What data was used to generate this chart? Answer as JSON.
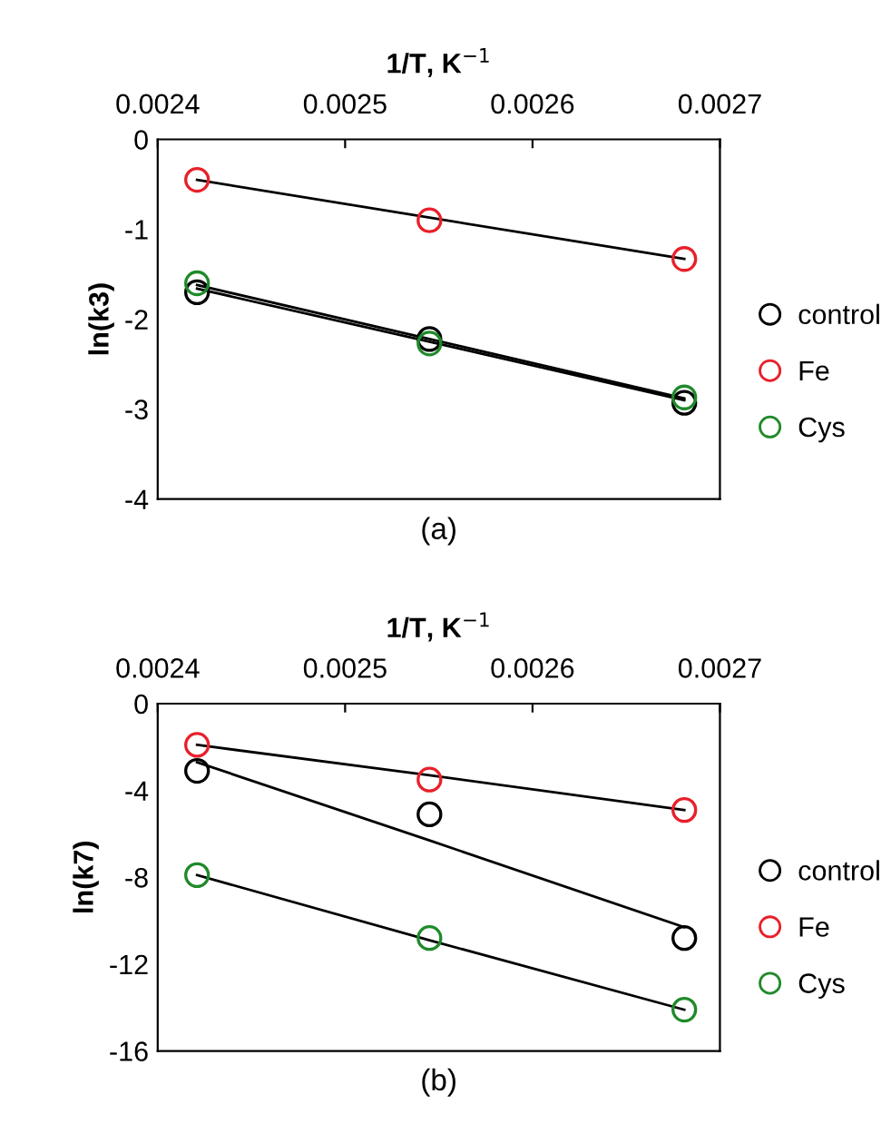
{
  "chart_data": [
    {
      "type": "scatter",
      "xlabel": "1/T, K$^{−1}$",
      "ylabel": "ln(k3)",
      "annotations": [
        "(a)"
      ],
      "legend": "right",
      "grid": false,
      "x": [
        0.002421,
        0.002545,
        0.002681
      ],
      "xlim": [
        0.0024,
        0.0027
      ],
      "xticks": [
        0.0024,
        0.0025,
        0.0026,
        0.0027
      ],
      "ylim": [
        -4,
        0
      ],
      "yticks": [
        -4,
        -3,
        -2,
        -1,
        0
      ],
      "series": [
        {
          "name": "control",
          "color": "#000000",
          "marker": "circle",
          "values": [
            -1.7,
            -2.22,
            -2.93
          ]
        },
        {
          "name": "Fe",
          "color": "#e8202a",
          "marker": "circle",
          "values": [
            -0.45,
            -0.9,
            -1.33
          ]
        },
        {
          "name": "Cys",
          "color": "#1f8a2a",
          "marker": "circle",
          "values": [
            -1.6,
            -2.27,
            -2.87
          ]
        },
        {
          "type": "line",
          "color": "#000000",
          "marker": "none",
          "values": [
            -1.66,
            -2.25,
            -2.9
          ]
        },
        {
          "type": "line",
          "color": "#000000",
          "marker": "none",
          "values": [
            -0.45,
            -0.87,
            -1.33
          ]
        },
        {
          "type": "line",
          "color": "#000000",
          "marker": "none",
          "values": [
            -1.62,
            -2.22,
            -2.88
          ]
        }
      ]
    },
    {
      "type": "scatter",
      "xlabel": "1/T, K$^{−1}$",
      "ylabel": "ln(k7)",
      "annotations": [
        "(b)"
      ],
      "legend": "right",
      "grid": false,
      "x": [
        0.002421,
        0.002545,
        0.002681
      ],
      "xlim": [
        0.0024,
        0.0027
      ],
      "xticks": [
        0.0024,
        0.0025,
        0.0026,
        0.0027
      ],
      "ylim": [
        -16,
        0
      ],
      "yticks": [
        -16,
        -12,
        -8,
        -4,
        0
      ],
      "series": [
        {
          "name": "control",
          "color": "#000000",
          "marker": "circle",
          "values": [
            -3.1,
            -5.1,
            -10.8
          ]
        },
        {
          "name": "Fe",
          "color": "#e8202a",
          "marker": "circle",
          "values": [
            -1.9,
            -3.5,
            -4.9
          ]
        },
        {
          "name": "Cys",
          "color": "#1f8a2a",
          "marker": "circle",
          "values": [
            -7.9,
            -10.8,
            -14.1
          ]
        },
        {
          "type": "line",
          "color": "#000000",
          "marker": "none",
          "values": [
            -2.7,
            -6.3,
            -10.3
          ]
        },
        {
          "type": "line",
          "color": "#000000",
          "marker": "none",
          "values": [
            -1.9,
            -3.3,
            -4.9
          ]
        },
        {
          "type": "line",
          "color": "#000000",
          "marker": "none",
          "values": [
            -7.9,
            -10.9,
            -14.1
          ]
        }
      ]
    }
  ]
}
